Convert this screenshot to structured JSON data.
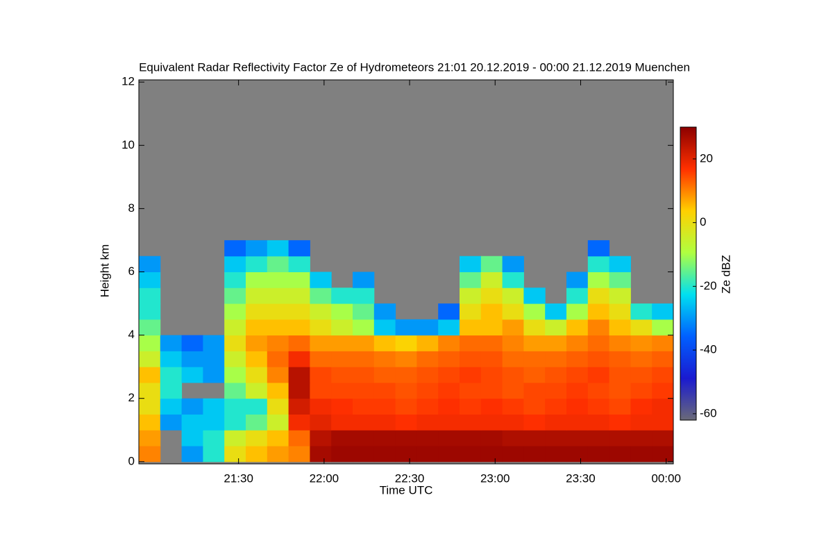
{
  "chart_data": {
    "type": "heatmap",
    "title": "Equivalent Radar Reflectivity Factor Ze of Hydrometeors   21:01 20.12.2019 - 00:00 21.12.2019 Muenchen",
    "xlabel": "Time UTC",
    "ylabel": "Height km",
    "colorbar_label": "Ze dBZ",
    "xlim": [
      20.917,
      24.042
    ],
    "ylim": [
      -0.07,
      12.07
    ],
    "xticks": [
      {
        "value": 21.5,
        "label": "21:30"
      },
      {
        "value": 22,
        "label": "22:00"
      },
      {
        "value": 22.5,
        "label": "22:30"
      },
      {
        "value": 23,
        "label": "23:00"
      },
      {
        "value": 23.5,
        "label": "23:30"
      },
      {
        "value": 24,
        "label": "00:00"
      }
    ],
    "yticks": [
      0,
      2,
      4,
      6,
      8,
      10,
      12
    ],
    "zlim": [
      -62,
      30
    ],
    "zticks": [
      -60,
      -40,
      -20,
      0,
      20
    ],
    "colormap": [
      "#6a6a78",
      "#1a1ad0",
      "#0060ff",
      "#00e0f0",
      "#b0ff40",
      "#ffd000",
      "#ff3000",
      "#8b0000"
    ],
    "missing_color": "#808080",
    "xbins": [
      20.917,
      21.042,
      21.167,
      21.292,
      21.417,
      21.542,
      21.667,
      21.792,
      21.917,
      22.042,
      22.167,
      22.292,
      22.417,
      22.542,
      22.667,
      22.792,
      22.917,
      23.042,
      23.167,
      23.292,
      23.417,
      23.542,
      23.667,
      23.792,
      23.917,
      24.042
    ],
    "ybins": [
      0,
      0.5,
      1,
      1.5,
      2,
      2.5,
      3,
      3.5,
      4,
      4.5,
      5,
      5.5,
      6,
      6.5,
      7,
      7.5
    ],
    "z": [
      [
        10,
        null,
        -30,
        -20,
        0,
        5,
        8,
        10,
        27,
        28,
        28,
        28,
        28,
        28,
        28,
        28,
        28,
        28,
        28,
        28,
        28,
        28,
        28,
        28,
        28
      ],
      [
        8,
        null,
        -25,
        -20,
        -5,
        0,
        5,
        12,
        25,
        27,
        27,
        27,
        27,
        27,
        27,
        27,
        27,
        26,
        26,
        26,
        26,
        26,
        26,
        26,
        26
      ],
      [
        5,
        -30,
        -25,
        -25,
        -20,
        -15,
        -5,
        18,
        20,
        18,
        18,
        18,
        17,
        18,
        18,
        18,
        18,
        18,
        17,
        18,
        18,
        18,
        17,
        18,
        18
      ],
      [
        0,
        -25,
        -30,
        -25,
        -20,
        -20,
        0,
        22,
        18,
        17,
        16,
        16,
        15,
        16,
        17,
        16,
        17,
        16,
        15,
        16,
        17,
        16,
        15,
        17,
        18
      ],
      [
        0,
        -20,
        null,
        null,
        -15,
        -5,
        5,
        25,
        15,
        15,
        15,
        15,
        14,
        15,
        16,
        15,
        15,
        14,
        15,
        15,
        16,
        15,
        14,
        15,
        16
      ],
      [
        5,
        -20,
        -25,
        -30,
        -10,
        0,
        10,
        25,
        15,
        14,
        14,
        13,
        13,
        14,
        15,
        16,
        15,
        14,
        13,
        14,
        15,
        16,
        14,
        14,
        15
      ],
      [
        -5,
        -25,
        -30,
        -30,
        -5,
        5,
        12,
        18,
        12,
        12,
        12,
        11,
        10,
        12,
        13,
        14,
        14,
        12,
        12,
        12,
        13,
        14,
        13,
        12,
        13
      ],
      [
        -10,
        -30,
        -35,
        -30,
        0,
        8,
        10,
        12,
        8,
        8,
        8,
        5,
        3,
        6,
        10,
        12,
        12,
        10,
        8,
        8,
        10,
        12,
        10,
        9,
        10
      ],
      [
        -15,
        null,
        null,
        null,
        -5,
        5,
        5,
        5,
        0,
        -5,
        -10,
        -25,
        -30,
        -30,
        -25,
        5,
        5,
        8,
        0,
        -5,
        5,
        10,
        5,
        0,
        -10
      ],
      [
        -20,
        null,
        null,
        null,
        -10,
        0,
        0,
        0,
        -5,
        -10,
        -15,
        -30,
        null,
        null,
        -35,
        0,
        5,
        0,
        -10,
        -25,
        -10,
        5,
        0,
        -20,
        -25
      ],
      [
        -20,
        null,
        null,
        null,
        -15,
        -5,
        -5,
        -5,
        -15,
        -20,
        -20,
        null,
        null,
        null,
        null,
        -5,
        0,
        -5,
        -25,
        null,
        -20,
        0,
        -5,
        null,
        null
      ],
      [
        -25,
        null,
        null,
        null,
        -20,
        -10,
        -10,
        -10,
        -25,
        null,
        -30,
        null,
        null,
        null,
        null,
        -15,
        -5,
        -20,
        null,
        null,
        -30,
        -10,
        -15,
        null,
        null
      ],
      [
        -30,
        null,
        null,
        null,
        -25,
        -20,
        -15,
        -20,
        null,
        null,
        null,
        null,
        null,
        null,
        null,
        -25,
        -15,
        -30,
        null,
        null,
        null,
        -20,
        -25,
        null,
        null
      ],
      [
        null,
        null,
        null,
        null,
        -35,
        -30,
        -25,
        -35,
        null,
        null,
        null,
        null,
        null,
        null,
        null,
        null,
        null,
        null,
        null,
        null,
        null,
        -35,
        null,
        null,
        null
      ],
      [
        null,
        null,
        null,
        null,
        null,
        null,
        null,
        null,
        null,
        null,
        null,
        null,
        null,
        null,
        null,
        null,
        null,
        null,
        null,
        null,
        null,
        null,
        null,
        null,
        null
      ]
    ]
  }
}
